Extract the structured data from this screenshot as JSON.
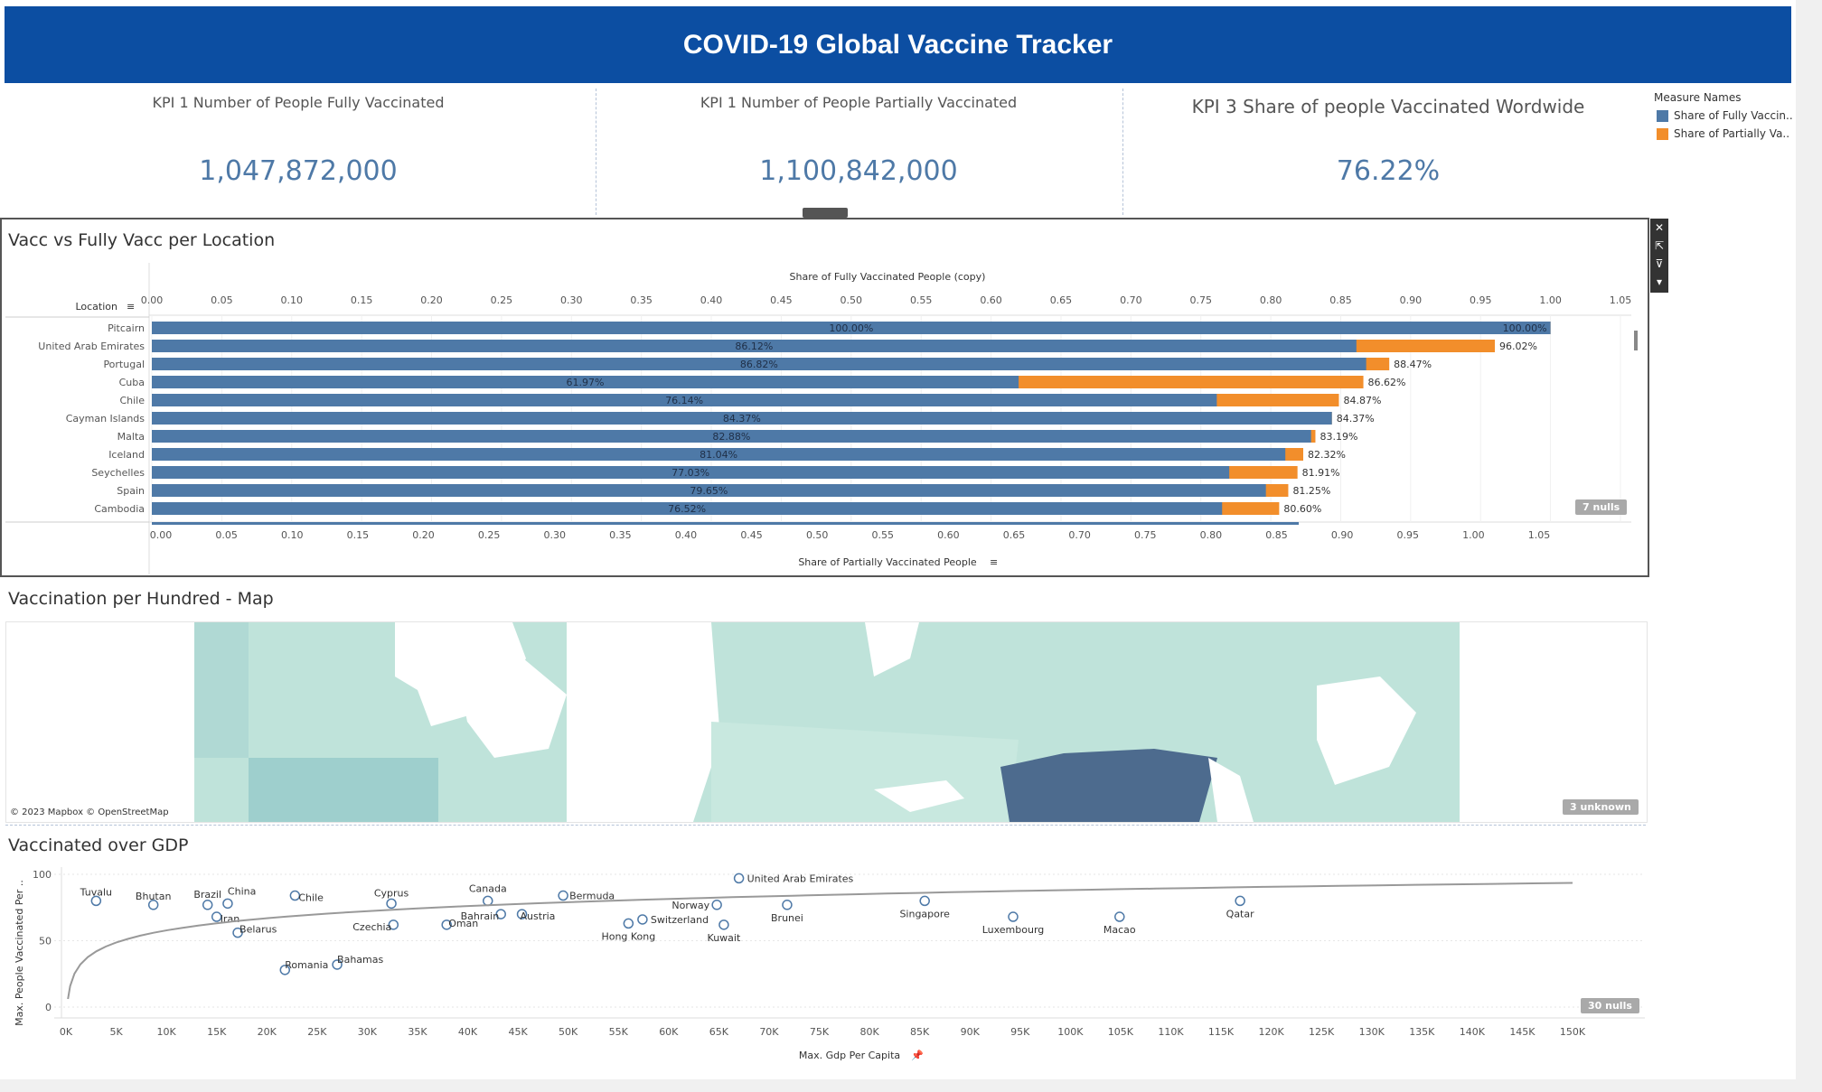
{
  "header": {
    "title": "COVID-19 Global Vaccine Tracker"
  },
  "kpis": [
    {
      "title": "KPI 1 Number of People Fully Vaccinated",
      "value": "1,047,872,000"
    },
    {
      "title": "KPI 1 Number of People Partially Vaccinated",
      "value": "1,100,842,000"
    },
    {
      "title": "KPI 3 Share of people Vaccinated Wordwide",
      "value": "76.22%"
    }
  ],
  "legend": {
    "title": "Measure Names",
    "items": [
      {
        "label": "Share of Fully Vaccin..",
        "color": "#4e79a7"
      },
      {
        "label": "Share of Partially Va..",
        "color": "#f28e2b"
      }
    ]
  },
  "toolbar": {
    "close": "✕",
    "popout": "⇱",
    "filter": "⊽",
    "more": "▾"
  },
  "bar_panel": {
    "title": "Vacc vs Fully Vacc per Location",
    "location_header": "Location",
    "top_axis_title": "Share of Fully Vaccinated People (copy)",
    "bottom_axis_title": "Share of Partially Vaccinated People",
    "nulls_badge": "7 nulls"
  },
  "map_panel": {
    "title": "Vaccination per Hundred - Map",
    "credit": "© 2023 Mapbox © OpenStreetMap",
    "unknown_badge": "3 unknown"
  },
  "scatter_panel": {
    "title": "Vaccinated over GDP",
    "nulls_badge": "30 nulls"
  },
  "chart_data": [
    {
      "type": "bar",
      "title": "Vacc vs Fully Vacc per Location",
      "xlabel_top": "Share of Fully Vaccinated People (copy)",
      "xlabel": "Share of Partially Vaccinated People",
      "ylabel": "Location",
      "xlim": [
        0,
        1.05
      ],
      "ticks_top": [
        "0.00",
        "0.05",
        "0.10",
        "0.15",
        "0.20",
        "0.25",
        "0.30",
        "0.35",
        "0.40",
        "0.45",
        "0.50",
        "0.55",
        "0.60",
        "0.65",
        "0.70",
        "0.75",
        "0.80",
        "0.85",
        "0.90",
        "0.95",
        "1.00",
        "1.05"
      ],
      "ticks_bottom": [
        "0.00",
        "0.05",
        "0.10",
        "0.15",
        "0.20",
        "0.25",
        "0.30",
        "0.35",
        "0.40",
        "0.45",
        "0.50",
        "0.55",
        "0.60",
        "0.65",
        "0.70",
        "0.75",
        "0.80",
        "0.85",
        "0.90",
        "0.95",
        "1.00",
        "1.05"
      ],
      "categories": [
        "Pitcairn",
        "United Arab Emirates",
        "Portugal",
        "Cuba",
        "Chile",
        "Cayman Islands",
        "Malta",
        "Iceland",
        "Seychelles",
        "Spain",
        "Cambodia"
      ],
      "series": [
        {
          "name": "Share of Fully Vaccin..",
          "color": "#4e79a7",
          "values": [
            1.0,
            0.8612,
            0.8682,
            0.6197,
            0.7614,
            0.8437,
            0.8288,
            0.8104,
            0.7703,
            0.7965,
            0.7652
          ],
          "labels": [
            "100.00%",
            "86.12%",
            "86.82%",
            "61.97%",
            "76.14%",
            "84.37%",
            "82.88%",
            "81.04%",
            "77.03%",
            "79.65%",
            "76.52%"
          ]
        },
        {
          "name": "Share of Partially Va..",
          "color": "#f28e2b",
          "values": [
            1.0,
            0.9602,
            0.8847,
            0.8662,
            0.8487,
            0.8437,
            0.8319,
            0.8232,
            0.8191,
            0.8125,
            0.806
          ],
          "labels": [
            "100.00%",
            "96.02%",
            "88.47%",
            "86.62%",
            "84.87%",
            "84.37%",
            "83.19%",
            "82.32%",
            "81.91%",
            "81.25%",
            "80.60%"
          ]
        }
      ]
    },
    {
      "type": "scatter",
      "title": "Vaccinated over GDP",
      "xlabel": "Max. Gdp Per Capita",
      "ylabel": "Max. People Vaccinated Per ..",
      "xlim": [
        0,
        150000
      ],
      "ylim": [
        0,
        100
      ],
      "xticks": [
        "0K",
        "5K",
        "10K",
        "15K",
        "20K",
        "25K",
        "30K",
        "35K",
        "40K",
        "45K",
        "50K",
        "55K",
        "60K",
        "65K",
        "70K",
        "75K",
        "80K",
        "85K",
        "90K",
        "95K",
        "100K",
        "105K",
        "110K",
        "115K",
        "120K",
        "125K",
        "130K",
        "135K",
        "140K",
        "145K",
        "150K"
      ],
      "yticks": [
        "0",
        "50",
        "100"
      ],
      "trend_line": true,
      "labeled_points": [
        {
          "label": "United Arab Emirates",
          "x": 67000,
          "y": 97
        },
        {
          "label": "Bermuda",
          "x": 49500,
          "y": 84
        },
        {
          "label": "Canada",
          "x": 42000,
          "y": 80
        },
        {
          "label": "Norway",
          "x": 64800,
          "y": 77
        },
        {
          "label": "Brunei",
          "x": 71800,
          "y": 77
        },
        {
          "label": "Singapore",
          "x": 85500,
          "y": 80
        },
        {
          "label": "Qatar",
          "x": 116900,
          "y": 80
        },
        {
          "label": "Switzerland",
          "x": 57400,
          "y": 66
        },
        {
          "label": "Luxembourg",
          "x": 94300,
          "y": 68
        },
        {
          "label": "Macao",
          "x": 104900,
          "y": 68
        },
        {
          "label": "Kuwait",
          "x": 65500,
          "y": 62
        },
        {
          "label": "Hong Kong",
          "x": 56000,
          "y": 63
        },
        {
          "label": "Austria",
          "x": 45400,
          "y": 70
        },
        {
          "label": "Bahrain",
          "x": 43300,
          "y": 70
        },
        {
          "label": "Czechia",
          "x": 32600,
          "y": 62
        },
        {
          "label": "Oman",
          "x": 37900,
          "y": 62
        },
        {
          "label": "Cyprus",
          "x": 32400,
          "y": 78
        },
        {
          "label": "Chile",
          "x": 22800,
          "y": 84
        },
        {
          "label": "Brazil",
          "x": 14100,
          "y": 77
        },
        {
          "label": "China",
          "x": 16100,
          "y": 78
        },
        {
          "label": "Bhutan",
          "x": 8700,
          "y": 77
        },
        {
          "label": "Tuvalu",
          "x": 3000,
          "y": 80
        },
        {
          "label": "Iran",
          "x": 15000,
          "y": 68
        },
        {
          "label": "Belarus",
          "x": 17100,
          "y": 56
        },
        {
          "label": "Romania",
          "x": 21800,
          "y": 28
        },
        {
          "label": "Bahamas",
          "x": 27000,
          "y": 32
        }
      ]
    }
  ]
}
